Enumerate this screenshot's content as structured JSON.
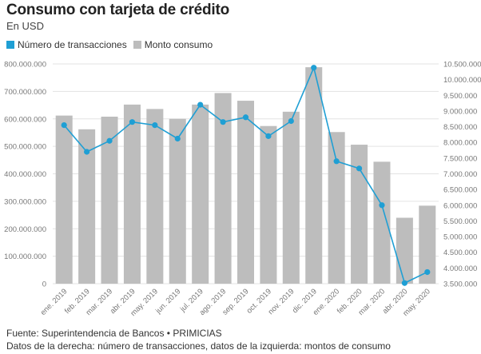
{
  "title": "Consumo con tarjeta de crédito",
  "subtitle": "En USD",
  "legend": [
    {
      "label": "Número de transacciones",
      "color": "#1f9fd4"
    },
    {
      "label": "Monto consumo",
      "color": "#bdbdbd"
    }
  ],
  "footer": {
    "source": "Fuente: Superintendencia de Bancos • PRIMICIAS",
    "note": "Datos de la derecha: número de transacciones, datos de la izquierda: montos de consumo"
  },
  "chart_data": {
    "type": "bar",
    "categories": [
      "ene. 2019",
      "feb. 2019",
      "mar. 2019",
      "abr. 2019",
      "may. 2019",
      "jun. 2019",
      "jul. 2019",
      "ago. 2019",
      "sep. 2019",
      "oct. 2019",
      "nov. 2019",
      "dic. 2019",
      "ene. 2020",
      "feb. 2020",
      "mar. 2020",
      "abr. 2020",
      "may. 2020"
    ],
    "series": [
      {
        "name": "Monto consumo",
        "type": "bar",
        "axis": "left",
        "color": "#bdbdbd",
        "values": [
          612000000,
          562000000,
          608000000,
          652000000,
          636000000,
          600000000,
          652000000,
          694000000,
          666000000,
          574000000,
          626000000,
          788000000,
          552000000,
          506000000,
          444000000,
          240000000,
          284000000
        ]
      },
      {
        "name": "Número de transacciones",
        "type": "line",
        "axis": "right",
        "color": "#1f9fd4",
        "values": [
          8550000,
          7700000,
          8050000,
          8650000,
          8550000,
          8120000,
          9200000,
          8650000,
          8800000,
          8200000,
          8680000,
          10380000,
          7400000,
          7170000,
          6000000,
          3520000,
          3870000
        ]
      }
    ],
    "y_left": {
      "min": 0,
      "max": 800000000,
      "step": 100000000,
      "tick_labels": [
        "0",
        "100.000.000",
        "200.000.000",
        "300.000.000",
        "400.000.000",
        "500.000.000",
        "600.000.000",
        "700.000.000",
        "800.000.000"
      ]
    },
    "y_right": {
      "min": 3500000,
      "max": 10500000,
      "step": 500000,
      "tick_labels": [
        "3.500.000",
        "4.000.000",
        "4.500.000",
        "5.000.000",
        "5.500.000",
        "6.000.000",
        "6.500.000",
        "7.000.000",
        "7.500.000",
        "8.000.000",
        "8.500.000",
        "9.000.000",
        "9.500.000",
        "10.000.000",
        "10.500.000"
      ]
    },
    "grid": true,
    "legend_position": "top-left"
  }
}
